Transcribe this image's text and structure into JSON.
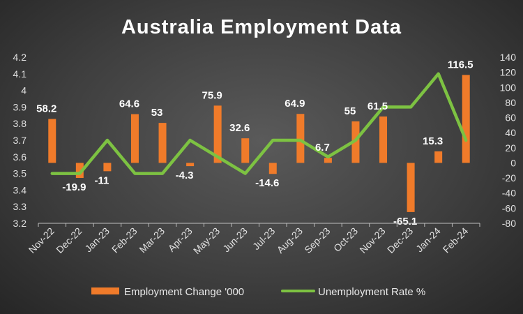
{
  "chart_data": {
    "type": "bar",
    "title": "Australia Employment Data",
    "categories": [
      "Nov-22",
      "Dec-22",
      "Jan-23",
      "Feb-23",
      "Mar-23",
      "Apr-23",
      "May-23",
      "Jun-23",
      "Jul-23",
      "Aug-23",
      "Sep-23",
      "Oct-23",
      "Nov-23",
      "Dec-23",
      "Jan-24",
      "Feb-24"
    ],
    "series": [
      {
        "name": "Employment Change '000",
        "type": "bar",
        "axis": "right",
        "color": "#f07b2a",
        "values": [
          58.2,
          -19.9,
          -11,
          64.6,
          53,
          -4.3,
          75.9,
          32.6,
          -14.6,
          64.9,
          6.7,
          55,
          61.5,
          -65.1,
          15.3,
          116.5
        ],
        "labels": [
          "58.2",
          "-19.9",
          "-11",
          "64.6",
          "53",
          "-4.3",
          "75.9",
          "32.6",
          "-14.6",
          "64.9",
          "6.7",
          "55",
          "61.5",
          "-65.1",
          "15.3",
          "116.5"
        ]
      },
      {
        "name": "Unemployment Rate %",
        "type": "line",
        "axis": "left",
        "color": "#7dc242",
        "values": [
          3.5,
          3.5,
          3.7,
          3.5,
          3.5,
          3.7,
          3.6,
          3.5,
          3.7,
          3.7,
          3.6,
          3.7,
          3.9,
          3.9,
          4.1,
          3.7
        ]
      }
    ],
    "y_left": {
      "min": 3.2,
      "max": 4.2,
      "ticks": [
        "3.2",
        "3.3",
        "3.4",
        "3.5",
        "3.6",
        "3.7",
        "3.8",
        "3.9",
        "4",
        "4.1",
        "4.2"
      ]
    },
    "y_right": {
      "min": -80,
      "max": 140,
      "ticks": [
        "-80",
        "-60",
        "-40",
        "-20",
        "0",
        "20",
        "40",
        "60",
        "80",
        "100",
        "120",
        "140"
      ]
    },
    "grid": false,
    "legend_position": "bottom"
  }
}
